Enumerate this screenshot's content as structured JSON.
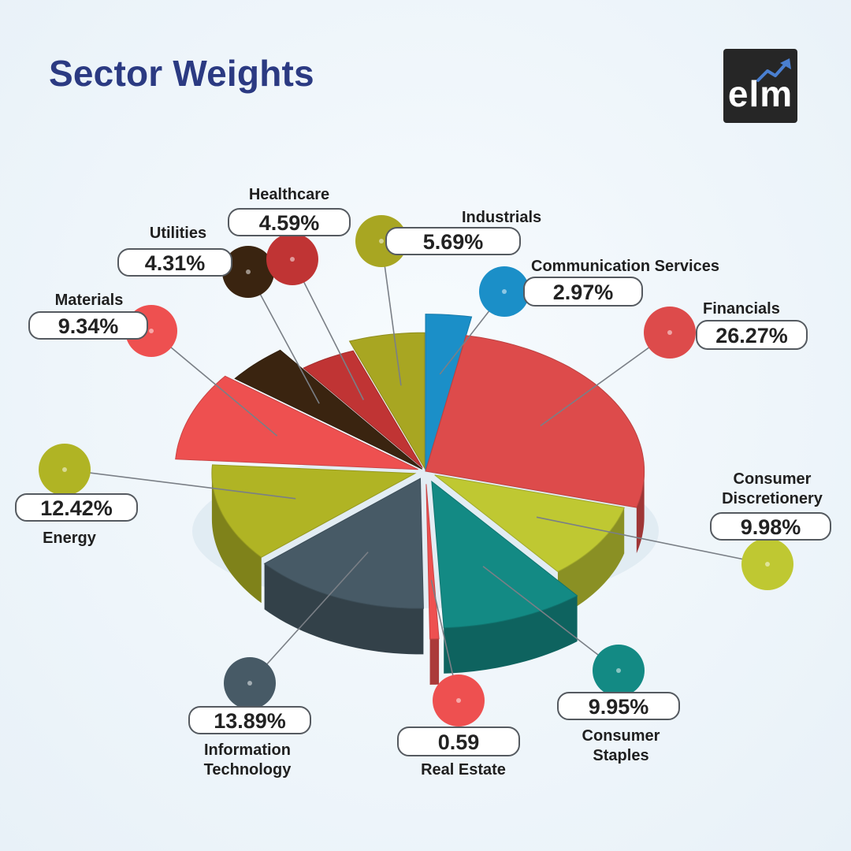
{
  "title": "Sector Weights",
  "logo": {
    "text": "elm"
  },
  "chart_data": {
    "type": "pie",
    "title": "Sector Weights",
    "slices": [
      {
        "label": "Communication Services",
        "value": 2.97,
        "display": "2.97%",
        "color": "#1b8fc8"
      },
      {
        "label": "Financials",
        "value": 26.27,
        "display": "26.27%",
        "color": "#dd4b4b"
      },
      {
        "label": "Consumer Discretionery",
        "value": 9.98,
        "display": "9.98%",
        "color": "#bfc832"
      },
      {
        "label": "Consumer Staples",
        "value": 9.95,
        "display": "9.95%",
        "color": "#138a84"
      },
      {
        "label": "Real Estate",
        "value": 0.59,
        "display": "0.59",
        "color": "#ee5050"
      },
      {
        "label": "Information Technology",
        "value": 13.89,
        "display": "13.89%",
        "color": "#475a66"
      },
      {
        "label": "Energy",
        "value": 12.42,
        "display": "12.42%",
        "color": "#b0b424"
      },
      {
        "label": "Materials",
        "value": 9.34,
        "display": "9.34%",
        "color": "#ee5050"
      },
      {
        "label": "Utilities",
        "value": 4.31,
        "display": "4.31%",
        "color": "#3a2410"
      },
      {
        "label": "Healthcare",
        "value": 4.59,
        "display": "4.59%",
        "color": "#c03434"
      },
      {
        "label": "Industrials",
        "value": 5.69,
        "display": "5.69%",
        "color": "#a8a622"
      }
    ]
  }
}
